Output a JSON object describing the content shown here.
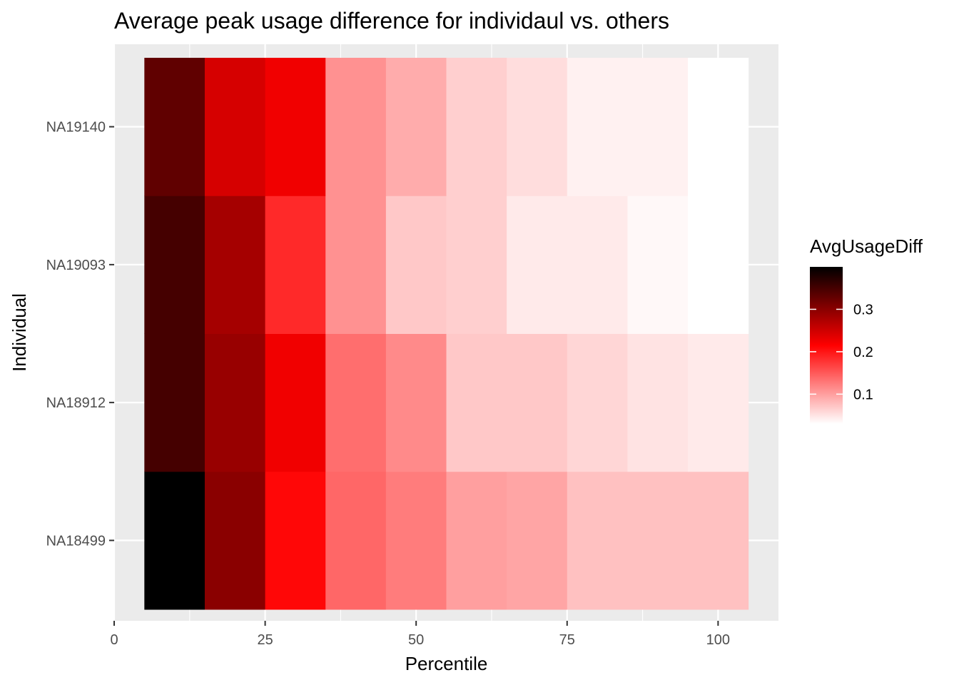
{
  "chart_data": {
    "type": "heatmap",
    "title": "Average peak usage difference for individaul vs. others",
    "xlabel": "Percentile",
    "ylabel": "Individual",
    "x": [
      10,
      20,
      30,
      40,
      50,
      60,
      70,
      80,
      90,
      100
    ],
    "x_ticks": [
      0,
      25,
      50,
      75,
      100
    ],
    "xlim": [
      0,
      110
    ],
    "y_categories": [
      "NA18499",
      "NA18912",
      "NA19093",
      "NA19140"
    ],
    "values": [
      [
        0.4,
        0.3,
        0.21,
        0.14,
        0.125,
        0.1,
        0.095,
        0.075,
        0.075,
        0.075
      ],
      [
        0.35,
        0.29,
        0.225,
        0.135,
        0.115,
        0.07,
        0.07,
        0.06,
        0.05,
        0.045
      ],
      [
        0.35,
        0.28,
        0.185,
        0.11,
        0.07,
        0.065,
        0.045,
        0.045,
        0.035,
        0.03
      ],
      [
        0.33,
        0.245,
        0.225,
        0.11,
        0.09,
        0.065,
        0.055,
        0.04,
        0.04,
        0.03
      ]
    ],
    "legend": {
      "title": "AvgUsageDiff",
      "position": "right",
      "ticks": [
        0.1,
        0.2,
        0.3
      ],
      "tick_labels": [
        "0.1",
        "0.2",
        "0.3"
      ],
      "range": [
        0.03,
        0.4
      ],
      "colors": [
        "#ffffff",
        "#ff0000",
        "#000000"
      ]
    },
    "panel_background": "#ebebeb",
    "grid_color": "#ffffff",
    "grid": true
  }
}
